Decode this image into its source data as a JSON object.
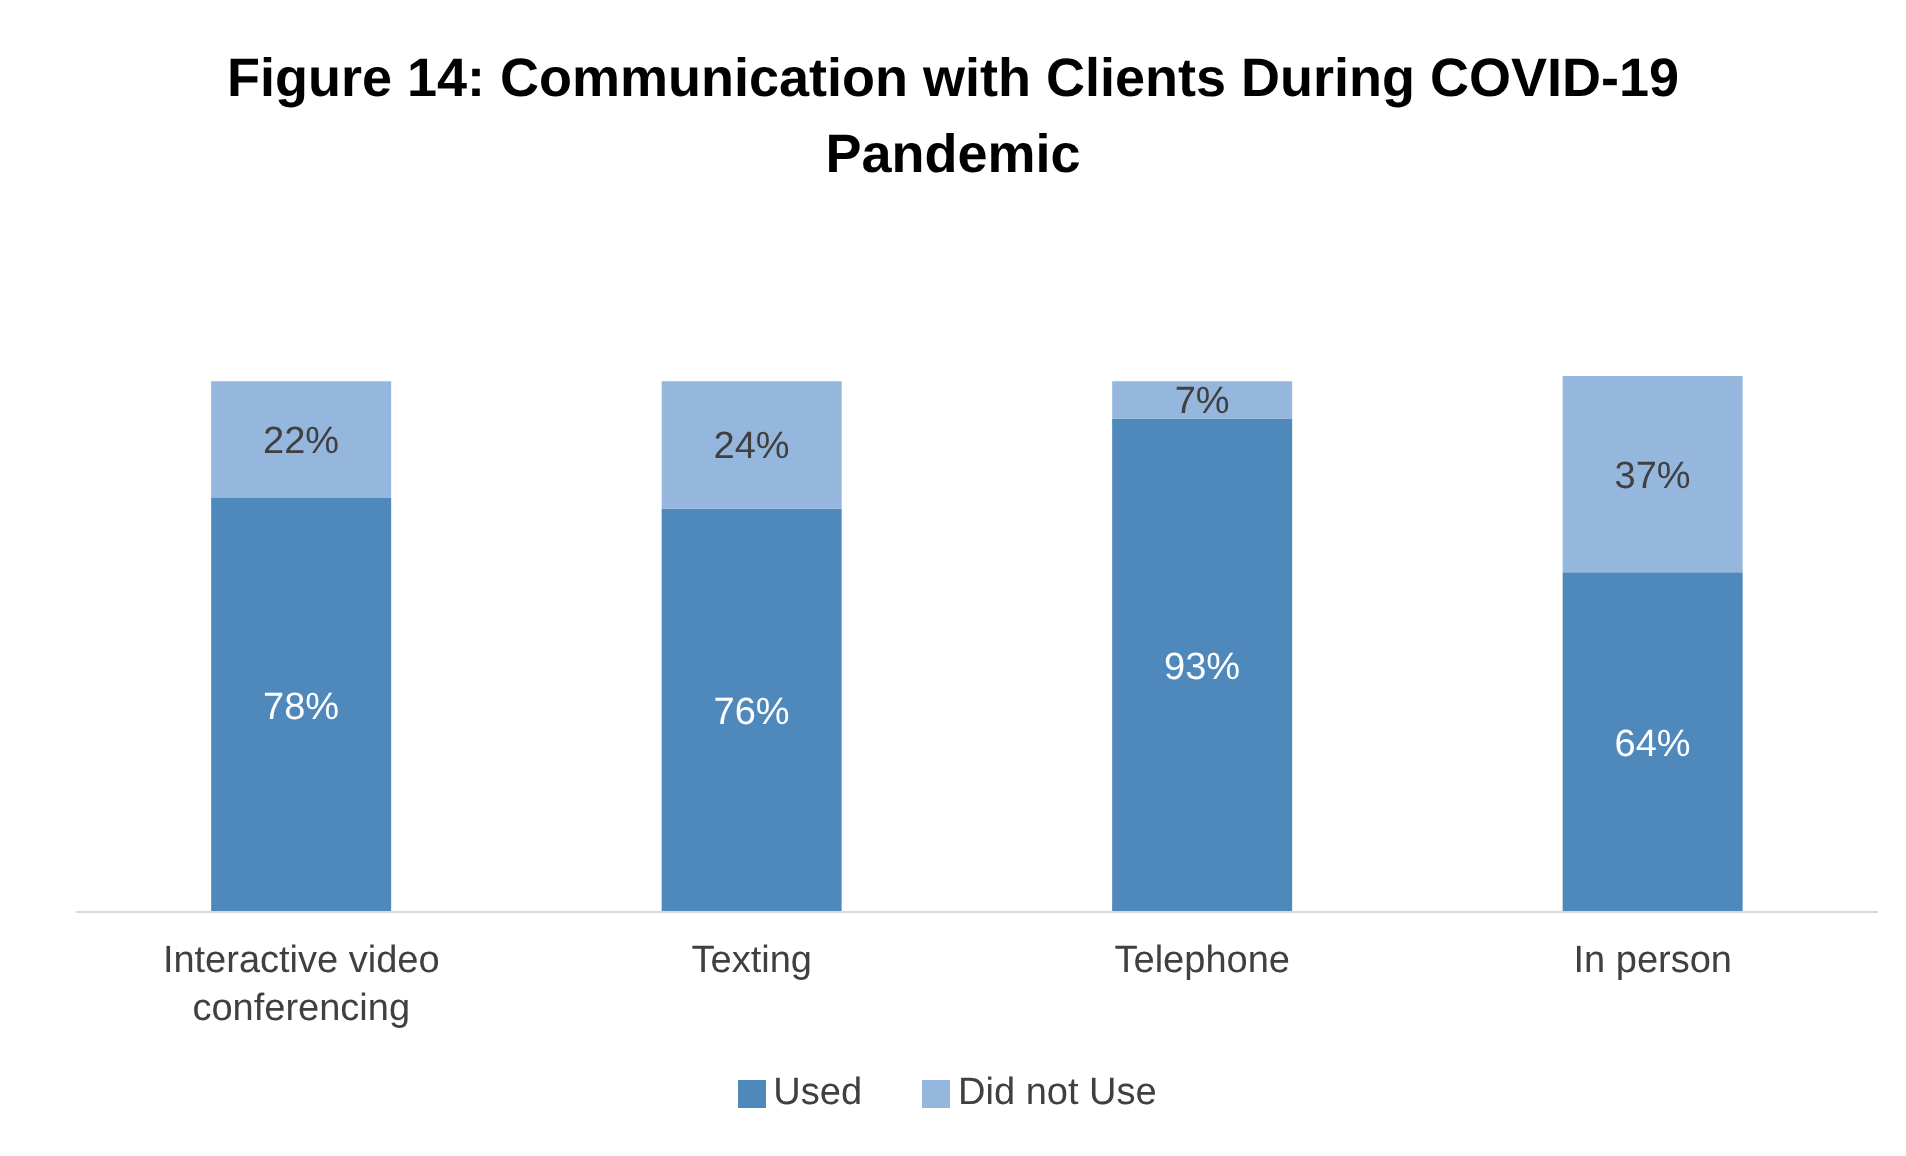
{
  "chart_data": {
    "type": "bar",
    "stacked": true,
    "title": "Figure 14: Communication with Clients During COVID-19 Pandemic",
    "categories": [
      "Interactive video conferencing",
      "Texting",
      "Telephone",
      "In person"
    ],
    "series": [
      {
        "name": "Used",
        "color": "#4f88bb",
        "values": [
          78,
          76,
          93,
          64
        ],
        "value_labels": [
          "78%",
          "76%",
          "93%",
          "64%"
        ]
      },
      {
        "name": "Did not Use",
        "color": "#95b7dd",
        "values": [
          22,
          24,
          7,
          37
        ],
        "value_labels": [
          "22%",
          "24%",
          "7%",
          "37%"
        ]
      }
    ],
    "legend": "bottom",
    "grid": false
  }
}
